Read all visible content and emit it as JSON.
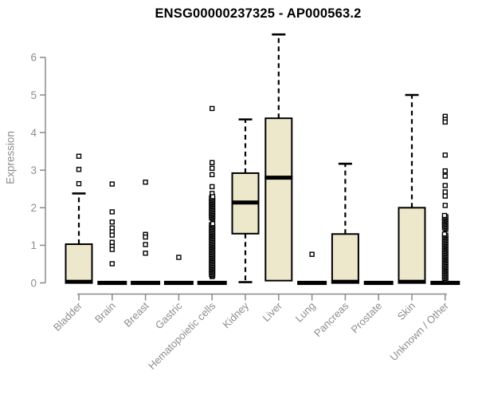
{
  "colors": {
    "background": "#ffffff",
    "box_fill": "#EDE7CB",
    "box_border": "#000000",
    "median": "#000000",
    "outlier_marker": "#000000",
    "axis_line": "#8a8a8a",
    "axis_text": "#8d8d8d",
    "title_color": "#000000"
  },
  "chart_data": {
    "type": "boxplot",
    "title": "ENSG00000237325 - AP000563.2",
    "xlabel": "",
    "ylabel": "Expression",
    "ylim": [
      0,
      6.8
    ],
    "yticks": [
      0,
      1,
      2,
      3,
      4,
      5,
      6
    ],
    "grid": false,
    "legend": "none",
    "categories": [
      "Bladder",
      "Brain",
      "Breast",
      "Gastric",
      "Hematopoietic cells",
      "Kidney",
      "Liver",
      "Lung",
      "Pancreas",
      "Prostate",
      "Skin",
      "Unknown / Other"
    ],
    "boxes": [
      {
        "name": "Bladder",
        "q1": 0,
        "median": 0.03,
        "q3": 1.03,
        "whisker_low": 0,
        "whisker_high": 2.38,
        "outliers": [
          3.37,
          3.02,
          2.64
        ],
        "outlier_ranges": []
      },
      {
        "name": "Brain",
        "q1": 0,
        "median": 0,
        "q3": 0,
        "whisker_low": 0,
        "whisker_high": 0,
        "outliers": [
          2.63,
          1.89,
          1.62,
          1.46,
          1.36,
          1.27,
          1.08,
          0.97,
          0.89,
          0.51
        ],
        "outlier_ranges": []
      },
      {
        "name": "Breast",
        "q1": 0,
        "median": 0,
        "q3": 0,
        "whisker_low": 0,
        "whisker_high": 0,
        "outliers": [
          2.68,
          1.29,
          1.22,
          1.02,
          0.79
        ],
        "outlier_ranges": []
      },
      {
        "name": "Gastric",
        "q1": 0,
        "median": 0,
        "q3": 0,
        "whisker_low": 0,
        "whisker_high": 0,
        "outliers": [
          0.68
        ],
        "outlier_ranges": []
      },
      {
        "name": "Hematopoietic cells",
        "q1": 0,
        "median": 0,
        "q3": 0,
        "whisker_low": 0,
        "whisker_high": 0,
        "outliers": [
          4.64,
          3.2,
          3.05,
          2.88,
          2.56,
          2.38,
          0.17
        ],
        "outlier_ranges": [
          {
            "from": 0.19,
            "to": 1.6,
            "step": 0.033
          },
          {
            "from": 1.7,
            "to": 2.31,
            "step": 0.033
          }
        ]
      },
      {
        "name": "Kidney",
        "q1": 1.31,
        "median": 2.14,
        "q3": 2.92,
        "whisker_low": 0.02,
        "whisker_high": 4.35,
        "outliers": [],
        "outlier_ranges": []
      },
      {
        "name": "Liver",
        "q1": 0.06,
        "median": 2.8,
        "q3": 4.38,
        "whisker_low": 0.06,
        "whisker_high": 6.61,
        "outliers": [],
        "outlier_ranges": []
      },
      {
        "name": "Lung",
        "q1": 0,
        "median": 0,
        "q3": 0,
        "whisker_low": 0,
        "whisker_high": 0,
        "outliers": [
          0.76
        ],
        "outlier_ranges": []
      },
      {
        "name": "Pancreas",
        "q1": 0,
        "median": 0.03,
        "q3": 1.3,
        "whisker_low": 0,
        "whisker_high": 3.17,
        "outliers": [],
        "outlier_ranges": []
      },
      {
        "name": "Prostate",
        "q1": 0,
        "median": 0,
        "q3": 0,
        "whisker_low": 0,
        "whisker_high": 0,
        "outliers": [],
        "outlier_ranges": []
      },
      {
        "name": "Skin",
        "q1": 0,
        "median": 0.03,
        "q3": 2.0,
        "whisker_low": 0,
        "whisker_high": 5.0,
        "outliers": [],
        "outlier_ranges": []
      },
      {
        "name": "Unknown / Other",
        "q1": 0,
        "median": 0,
        "q3": 0,
        "whisker_low": 0,
        "whisker_high": 0,
        "outliers": [
          4.43,
          4.35,
          4.28,
          3.4,
          2.98,
          2.84,
          2.59,
          2.42,
          2.31,
          2.06,
          0.05
        ],
        "outlier_ranges": [
          {
            "from": 0.08,
            "to": 1.32,
            "step": 0.033
          },
          {
            "from": 1.43,
            "to": 1.82,
            "step": 0.033
          }
        ]
      }
    ]
  }
}
